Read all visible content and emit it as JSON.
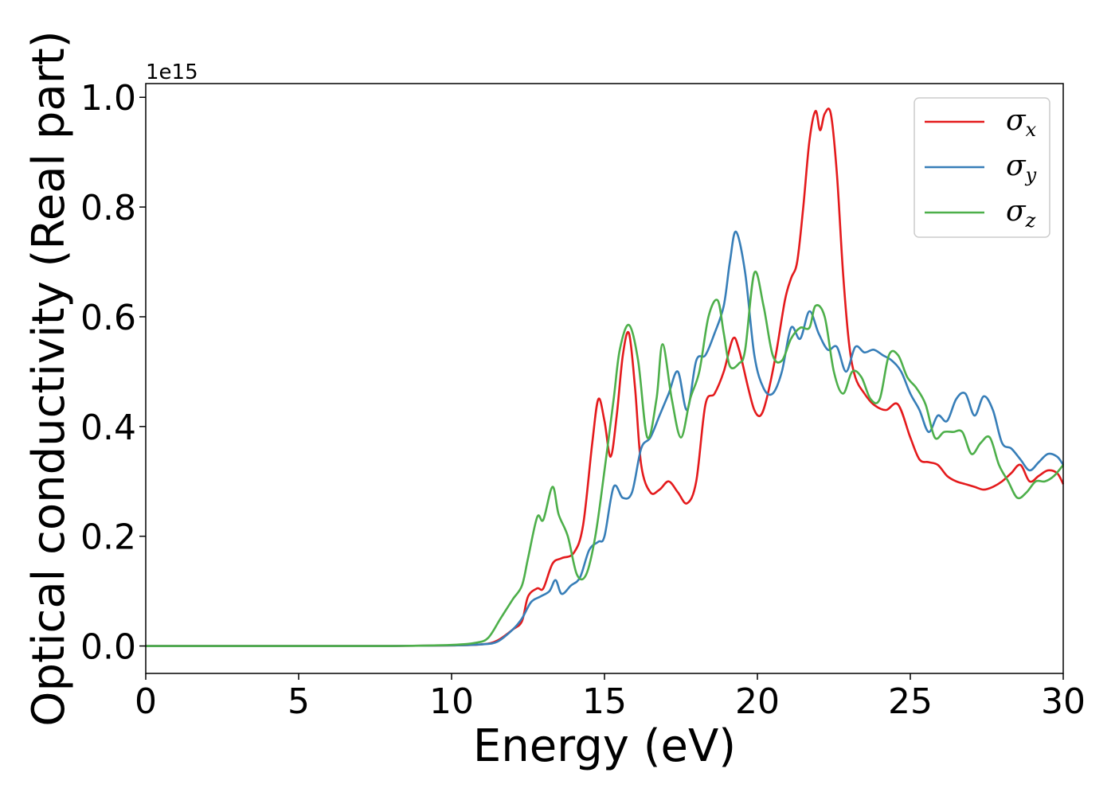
{
  "chart_data": {
    "type": "line",
    "xlabel": "Energy (eV)",
    "ylabel": "Optical conductivity (Real part)",
    "y_offset_label": "1e15",
    "xlim": [
      0,
      30
    ],
    "ylim": [
      -0.05,
      1.025
    ],
    "x_ticks": [
      0,
      5,
      10,
      15,
      20,
      25,
      30
    ],
    "x_tick_labels": [
      "0",
      "5",
      "10",
      "15",
      "20",
      "25",
      "30"
    ],
    "y_ticks": [
      0.0,
      0.2,
      0.4,
      0.6,
      0.8,
      1.0
    ],
    "y_tick_labels": [
      "0.0",
      "0.2",
      "0.4",
      "0.6",
      "0.8",
      "1.0"
    ],
    "grid": false,
    "legend_position": "top-right",
    "series": [
      {
        "name": "σ",
        "subscript": "x",
        "color": "#e41a1c",
        "x": [
          0,
          5,
          8,
          10,
          11,
          11.5,
          12,
          12.3,
          12.5,
          12.8,
          13,
          13.3,
          13.6,
          14,
          14.3,
          14.6,
          14.8,
          15,
          15.2,
          15.4,
          15.6,
          15.8,
          16,
          16.2,
          16.5,
          16.8,
          17.1,
          17.4,
          17.7,
          18,
          18.3,
          18.6,
          18.9,
          19.2,
          19.4,
          19.7,
          19.9,
          20.1,
          20.3,
          20.6,
          20.9,
          21.1,
          21.3,
          21.5,
          21.7,
          21.9,
          22.05,
          22.2,
          22.4,
          22.6,
          22.8,
          23,
          23.2,
          23.5,
          23.8,
          24.2,
          24.6,
          25,
          25.3,
          25.6,
          25.9,
          26.2,
          26.5,
          26.8,
          27.1,
          27.4,
          27.7,
          28,
          28.3,
          28.6,
          28.9,
          29.2,
          29.5,
          29.8,
          30
        ],
        "y": [
          0,
          0,
          0,
          0.001,
          0.003,
          0.01,
          0.03,
          0.045,
          0.09,
          0.105,
          0.105,
          0.15,
          0.16,
          0.17,
          0.22,
          0.37,
          0.45,
          0.41,
          0.345,
          0.42,
          0.53,
          0.57,
          0.47,
          0.33,
          0.28,
          0.285,
          0.3,
          0.28,
          0.26,
          0.3,
          0.44,
          0.46,
          0.5,
          0.56,
          0.54,
          0.47,
          0.43,
          0.42,
          0.45,
          0.53,
          0.63,
          0.67,
          0.7,
          0.8,
          0.92,
          0.975,
          0.94,
          0.97,
          0.97,
          0.86,
          0.68,
          0.55,
          0.49,
          0.46,
          0.44,
          0.43,
          0.44,
          0.38,
          0.34,
          0.335,
          0.33,
          0.31,
          0.3,
          0.295,
          0.29,
          0.285,
          0.29,
          0.3,
          0.315,
          0.33,
          0.3,
          0.31,
          0.32,
          0.315,
          0.295
        ]
      },
      {
        "name": "σ",
        "subscript": "y",
        "color": "#377eb8",
        "x": [
          0,
          5,
          8,
          10,
          11,
          11.5,
          12,
          12.3,
          12.6,
          12.9,
          13.2,
          13.4,
          13.6,
          13.9,
          14.2,
          14.5,
          14.8,
          15,
          15.3,
          15.6,
          15.9,
          16.2,
          16.5,
          16.8,
          17.1,
          17.4,
          17.7,
          18,
          18.3,
          18.6,
          18.9,
          19.1,
          19.3,
          19.6,
          19.9,
          20.2,
          20.5,
          20.8,
          21.1,
          21.4,
          21.7,
          22,
          22.3,
          22.6,
          22.9,
          23.2,
          23.5,
          23.8,
          24.1,
          24.4,
          24.7,
          25,
          25.3,
          25.6,
          25.9,
          26.2,
          26.5,
          26.8,
          27.1,
          27.4,
          27.7,
          28,
          28.3,
          28.6,
          28.9,
          29.2,
          29.5,
          29.8,
          30
        ],
        "y": [
          0,
          0,
          0,
          0.001,
          0.003,
          0.008,
          0.03,
          0.05,
          0.08,
          0.09,
          0.1,
          0.12,
          0.095,
          0.11,
          0.125,
          0.175,
          0.19,
          0.2,
          0.29,
          0.27,
          0.28,
          0.36,
          0.38,
          0.42,
          0.46,
          0.5,
          0.43,
          0.52,
          0.53,
          0.57,
          0.62,
          0.7,
          0.755,
          0.68,
          0.53,
          0.47,
          0.46,
          0.5,
          0.58,
          0.56,
          0.61,
          0.57,
          0.54,
          0.545,
          0.5,
          0.545,
          0.535,
          0.54,
          0.53,
          0.52,
          0.5,
          0.46,
          0.43,
          0.39,
          0.42,
          0.41,
          0.45,
          0.46,
          0.42,
          0.455,
          0.43,
          0.37,
          0.36,
          0.34,
          0.32,
          0.335,
          0.35,
          0.345,
          0.33
        ]
      },
      {
        "name": "σ",
        "subscript": "z",
        "color": "#4daf4a",
        "x": [
          0,
          5,
          8,
          10,
          10.8,
          11.2,
          11.6,
          12,
          12.3,
          12.5,
          12.8,
          13,
          13.3,
          13.5,
          13.8,
          14.1,
          14.4,
          14.7,
          15,
          15.3,
          15.5,
          15.8,
          16.1,
          16.4,
          16.7,
          16.9,
          17.2,
          17.5,
          17.8,
          18.1,
          18.4,
          18.7,
          18.9,
          19.1,
          19.4,
          19.6,
          19.9,
          20.2,
          20.5,
          20.8,
          21.1,
          21.4,
          21.7,
          21.9,
          22.2,
          22.5,
          22.8,
          23.1,
          23.4,
          23.7,
          24,
          24.3,
          24.6,
          24.9,
          25.2,
          25.5,
          25.8,
          26.1,
          26.4,
          26.7,
          27,
          27.3,
          27.6,
          27.9,
          28.2,
          28.5,
          28.8,
          29.1,
          29.4,
          29.7,
          30
        ],
        "y": [
          0,
          0,
          0,
          0.002,
          0.006,
          0.015,
          0.05,
          0.085,
          0.11,
          0.16,
          0.235,
          0.23,
          0.29,
          0.24,
          0.2,
          0.13,
          0.13,
          0.2,
          0.32,
          0.45,
          0.54,
          0.585,
          0.52,
          0.38,
          0.45,
          0.55,
          0.45,
          0.38,
          0.45,
          0.5,
          0.6,
          0.63,
          0.57,
          0.51,
          0.515,
          0.54,
          0.68,
          0.62,
          0.53,
          0.52,
          0.56,
          0.58,
          0.58,
          0.62,
          0.6,
          0.5,
          0.46,
          0.5,
          0.49,
          0.45,
          0.45,
          0.53,
          0.53,
          0.49,
          0.47,
          0.44,
          0.38,
          0.39,
          0.39,
          0.39,
          0.35,
          0.37,
          0.38,
          0.33,
          0.3,
          0.27,
          0.28,
          0.3,
          0.3,
          0.31,
          0.33
        ]
      }
    ]
  }
}
